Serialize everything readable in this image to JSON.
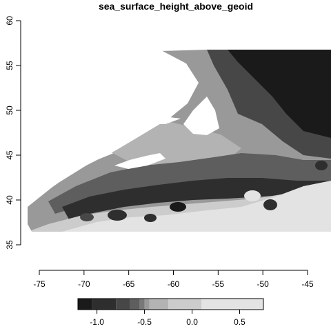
{
  "chart_data": {
    "type": "heatmap",
    "title": "sea_surface_height_above_geoid",
    "xlabel": "",
    "ylabel": "",
    "xlim": [
      -75,
      -45
    ],
    "ylim": [
      35,
      60
    ],
    "x_ticks": [
      "-75",
      "-70",
      "-65",
      "-60",
      "-55",
      "-50",
      "-45"
    ],
    "y_ticks": [
      "35",
      "40",
      "45",
      "50",
      "55",
      "60"
    ],
    "data_extent": {
      "lon": [
        -76.5,
        -44.5
      ],
      "lat": [
        36.5,
        56.7
      ]
    },
    "legend": {
      "position": "bottom",
      "range": [
        -1.2,
        0.75
      ],
      "ticks": [
        "-1.0",
        "-0.5",
        "0.0",
        "0.5"
      ],
      "breaks": [
        -1.2,
        -1.05,
        -0.8,
        -0.65,
        -0.55,
        -0.5,
        -0.45,
        -0.25,
        0.1,
        0.75
      ],
      "colors": [
        "#1a1a1a",
        "#2e2e2e",
        "#474747",
        "#5e5e5e",
        "#787878",
        "#999999",
        "#b3b3b3",
        "#cccccc",
        "#e3e3e3"
      ]
    },
    "grid": false
  }
}
